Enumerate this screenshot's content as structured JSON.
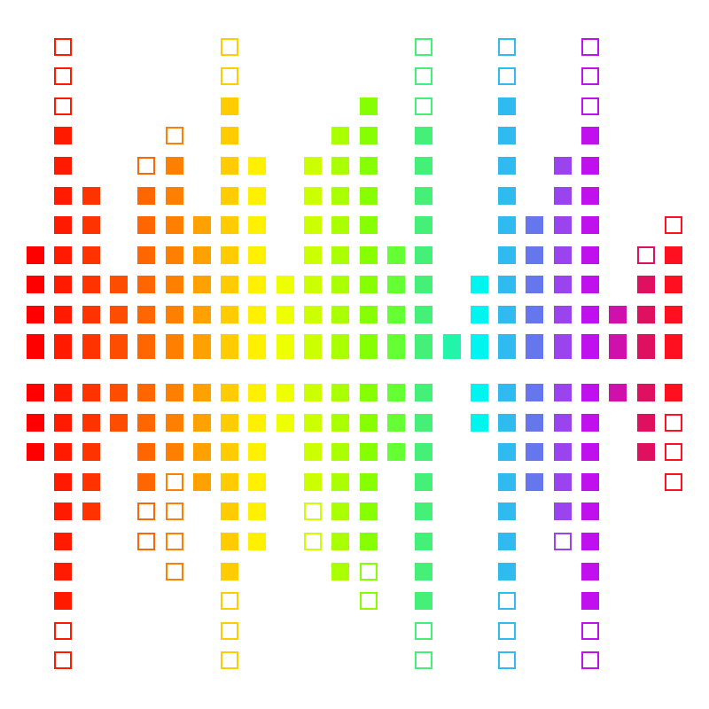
{
  "graphic": {
    "description_type": "equalizer-bars",
    "columns": [
      {
        "color": "#ff0000",
        "up": 3,
        "up_hollow": 0,
        "down": 3,
        "down_hollow": 0
      },
      {
        "color": "#ff1a00",
        "up": 7,
        "up_hollow": 3,
        "down": 8,
        "down_hollow": 2
      },
      {
        "color": "#ff3300",
        "up": 5,
        "up_hollow": 0,
        "down": 5,
        "down_hollow": 0
      },
      {
        "color": "#ff4d00",
        "up": 2,
        "up_hollow": 0,
        "down": 2,
        "down_hollow": 0
      },
      {
        "color": "#ff6600",
        "up": 5,
        "up_hollow": 1,
        "down": 4,
        "down_hollow": 2
      },
      {
        "color": "#ff8000",
        "up": 6,
        "up_hollow": 1,
        "down": 3,
        "down_hollow": 4
      },
      {
        "color": "#ffa200",
        "up": 4,
        "up_hollow": 0,
        "down": 4,
        "down_hollow": 0
      },
      {
        "color": "#ffcc00",
        "up": 8,
        "up_hollow": 2,
        "down": 7,
        "down_hollow": 3
      },
      {
        "color": "#fff000",
        "up": 6,
        "up_hollow": 0,
        "down": 6,
        "down_hollow": 0
      },
      {
        "color": "#eeff00",
        "up": 2,
        "up_hollow": 0,
        "down": 2,
        "down_hollow": 0
      },
      {
        "color": "#ccff00",
        "up": 6,
        "up_hollow": 0,
        "down": 4,
        "down_hollow": 2
      },
      {
        "color": "#aaff00",
        "up": 7,
        "up_hollow": 0,
        "down": 7,
        "down_hollow": 0
      },
      {
        "color": "#88ff00",
        "up": 8,
        "up_hollow": 0,
        "down": 6,
        "down_hollow": 2
      },
      {
        "color": "#66ff33",
        "up": 3,
        "up_hollow": 0,
        "down": 3,
        "down_hollow": 0
      },
      {
        "color": "#44f077",
        "up": 7,
        "up_hollow": 3,
        "down": 8,
        "down_hollow": 2
      },
      {
        "color": "#22f5aa",
        "up": 0,
        "up_hollow": 0,
        "down": 0,
        "down_hollow": 0
      },
      {
        "color": "#00f5ee",
        "up": 2,
        "up_hollow": 0,
        "down": 2,
        "down_hollow": 0
      },
      {
        "color": "#30bbf0",
        "up": 8,
        "up_hollow": 2,
        "down": 7,
        "down_hollow": 3
      },
      {
        "color": "#6677ee",
        "up": 4,
        "up_hollow": 0,
        "down": 4,
        "down_hollow": 0
      },
      {
        "color": "#9944ee",
        "up": 6,
        "up_hollow": 0,
        "down": 5,
        "down_hollow": 1
      },
      {
        "color": "#c010ee",
        "up": 7,
        "up_hollow": 3,
        "down": 8,
        "down_hollow": 2
      },
      {
        "color": "#d010aa",
        "up": 1,
        "up_hollow": 0,
        "down": 1,
        "down_hollow": 0
      },
      {
        "color": "#e01060",
        "up": 2,
        "up_hollow": 1,
        "down": 3,
        "down_hollow": 0
      },
      {
        "color": "#ff1020",
        "up": 3,
        "up_hollow": 1,
        "down": 1,
        "down_hollow": 3
      }
    ]
  }
}
